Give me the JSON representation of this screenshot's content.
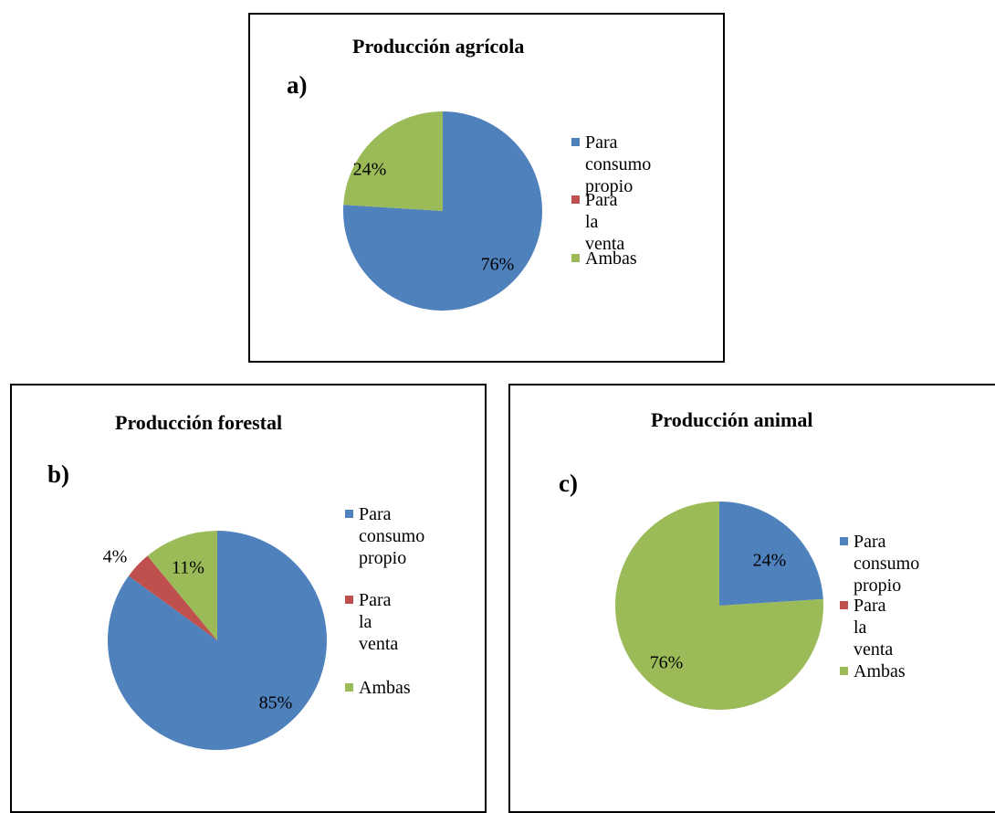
{
  "colors": {
    "consumo": "#4F81BD",
    "venta": "#C0504D",
    "ambas": "#9BBB59"
  },
  "legend": [
    "Para consumo propio",
    "Para la venta",
    "Ambas"
  ],
  "chart_data": [
    {
      "type": "pie",
      "panel_letter": "a)",
      "title": "Producción agrícola",
      "categories": [
        "Para consumo propio",
        "Para la venta",
        "Ambas"
      ],
      "values": [
        76,
        0,
        24
      ],
      "data_labels": [
        "76%",
        "",
        "24%"
      ],
      "legend_position": "right",
      "legend_lines": [
        "Para consumo\npropio",
        "Para la venta",
        "Ambas"
      ]
    },
    {
      "type": "pie",
      "panel_letter": "b)",
      "title": "Producción forestal",
      "categories": [
        "Para consumo propio",
        "Para la venta",
        "Ambas"
      ],
      "values": [
        85,
        4,
        11
      ],
      "data_labels": [
        "85%",
        "4%",
        "11%"
      ],
      "legend_position": "right",
      "legend_lines": [
        "Para\nconsumo\npropio",
        "Para la venta",
        "Ambas"
      ]
    },
    {
      "type": "pie",
      "panel_letter": "c)",
      "title": "Producción animal",
      "categories": [
        "Para consumo propio",
        "Para la venta",
        "Ambas"
      ],
      "values": [
        24,
        0,
        76
      ],
      "data_labels": [
        "24%",
        "",
        "76%"
      ],
      "legend_position": "right",
      "legend_lines": [
        "Para consumo\npropio",
        "Para la venta",
        "Ambas"
      ]
    }
  ]
}
